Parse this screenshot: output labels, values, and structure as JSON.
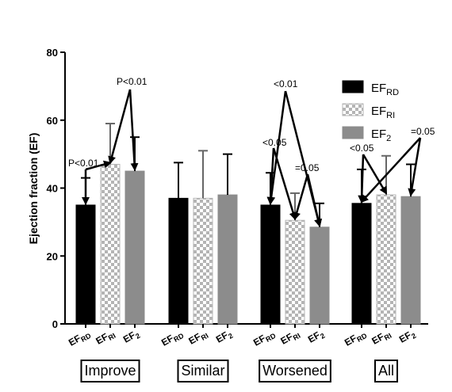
{
  "chart_data": {
    "type": "bar",
    "ylabel": "Ejection fraction  (EF)",
    "ylim": [
      0,
      80
    ],
    "yticks": [
      "0",
      "20",
      "40",
      "60",
      "80"
    ],
    "grid": false,
    "legend_position": "top-right",
    "colors": {
      "EF_RD": "#000000",
      "EF_RI_light": "#ffffff",
      "EF_RI_dark": "#b4b4b4",
      "EF_2": "#8c8c8c"
    },
    "legend": [
      {
        "base": "EF",
        "sub": "RD"
      },
      {
        "base": "EF",
        "sub": "RI"
      },
      {
        "base": "EF",
        "sub": "2"
      }
    ],
    "bar_labels": [
      {
        "base": "EF",
        "sub": "RD"
      },
      {
        "base": "EF",
        "sub": "RI"
      },
      {
        "base": "EF",
        "sub": "2"
      }
    ],
    "groups": [
      {
        "label": "Improve",
        "values": [
          35,
          47,
          45
        ],
        "errors": [
          43,
          59,
          55
        ]
      },
      {
        "label": "Similar",
        "values": [
          37,
          37,
          38
        ],
        "errors": [
          47.5,
          51,
          50
        ]
      },
      {
        "label": "Worsened",
        "values": [
          35,
          30.5,
          28.5
        ],
        "errors": [
          44.5,
          38.5,
          35.5
        ]
      },
      {
        "label": "All",
        "values": [
          35.5,
          38,
          37.5
        ],
        "errors": [
          45.5,
          49.5,
          47
        ]
      }
    ],
    "annotations": [
      {
        "text": "P<0.01",
        "from_group": 0,
        "from_bar": 0,
        "to_group": 0,
        "to_bar": 1
      },
      {
        "text": "P<0.01",
        "from_group": 0,
        "from_bar": 1,
        "to_group": 0,
        "to_bar": 2
      },
      {
        "text": "<0.05",
        "from_group": 2,
        "from_bar": 0,
        "to_group": 2,
        "to_bar": 1
      },
      {
        "text": "<0.01",
        "from_group": 2,
        "from_bar": 0,
        "to_group": 2,
        "to_bar": 2
      },
      {
        "text": "=0.05",
        "from_group": 2,
        "from_bar": 1,
        "to_group": 2,
        "to_bar": 2
      },
      {
        "text": "<0.05",
        "from_group": 3,
        "from_bar": 0,
        "to_group": 3,
        "to_bar": 1
      },
      {
        "text": "=0.05",
        "from_group": 3,
        "from_bar": 0,
        "to_group": 3,
        "to_bar": 2
      }
    ]
  }
}
